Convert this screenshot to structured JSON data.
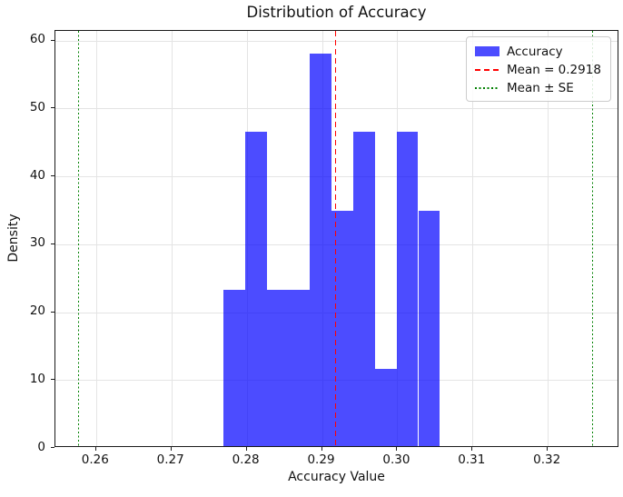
{
  "chart_data": {
    "type": "histogram",
    "title": "Distribution of Accuracy",
    "xlabel": "Accuracy Value",
    "ylabel": "Density",
    "series_label": "Accuracy",
    "bin_edges": [
      0.2769,
      0.27978,
      0.28265,
      0.28553,
      0.2884,
      0.29128,
      0.29415,
      0.29703,
      0.2999,
      0.30278,
      0.30565
    ],
    "densities": [
      23.3,
      46.5,
      23.3,
      23.3,
      58.1,
      34.9,
      46.5,
      11.6,
      46.5,
      34.9
    ],
    "mean": 0.2918,
    "mean_pm_se": [
      0.2577,
      0.3259
    ],
    "xlim": [
      0.2546,
      0.3295
    ],
    "ylim": [
      0,
      61.4
    ],
    "xticks": [
      0.26,
      0.27,
      0.28,
      0.29,
      0.3,
      0.31,
      0.32
    ],
    "xtick_labels": [
      "0.26",
      "0.27",
      "0.28",
      "0.29",
      "0.30",
      "0.31",
      "0.32"
    ],
    "yticks": [
      0,
      10,
      20,
      30,
      40,
      50,
      60
    ],
    "ytick_labels": [
      "0",
      "10",
      "20",
      "30",
      "40",
      "50",
      "60"
    ],
    "grid": true,
    "legend": {
      "position": "upper right",
      "entries": [
        {
          "label": "Accuracy",
          "type": "patch",
          "color": "rgba(0,0,255,0.7)"
        },
        {
          "label": "Mean = 0.2918",
          "type": "dashed-line",
          "color": "#ff0000"
        },
        {
          "label": "Mean ± SE",
          "type": "dotted-line",
          "color": "#008000"
        }
      ]
    },
    "colors": {
      "bar_fill": "rgba(0,0,255,0.7)",
      "mean_line": "#ff0000",
      "se_line": "#008000",
      "grid": "#e4e4e4",
      "spine": "#1a1a1a",
      "text": "#111111",
      "background": "#ffffff"
    }
  }
}
